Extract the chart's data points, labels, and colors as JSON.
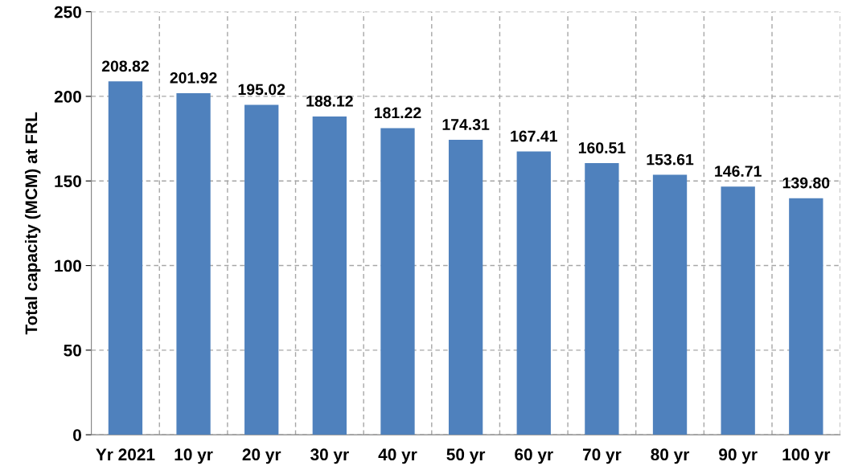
{
  "chart_data": {
    "type": "bar",
    "ylabel": "Total capacity (MCM) at FRL",
    "categories": [
      "Yr 2021",
      "10 yr",
      "20 yr",
      "30 yr",
      "40 yr",
      "50 yr",
      "60 yr",
      "70 yr",
      "80 yr",
      "90 yr",
      "100 yr"
    ],
    "values": [
      208.82,
      201.92,
      195.02,
      188.12,
      181.22,
      174.31,
      167.41,
      160.51,
      153.61,
      146.71,
      139.8
    ],
    "value_labels": [
      "208.82",
      "201.92",
      "195.02",
      "188.12",
      "181.22",
      "174.31",
      "167.41",
      "160.51",
      "153.61",
      "146.71",
      "139.80"
    ],
    "color": "#4f81bd",
    "ylim": [
      0,
      250
    ],
    "yticks": [
      0,
      50,
      100,
      150,
      200,
      250
    ],
    "grid": true
  }
}
